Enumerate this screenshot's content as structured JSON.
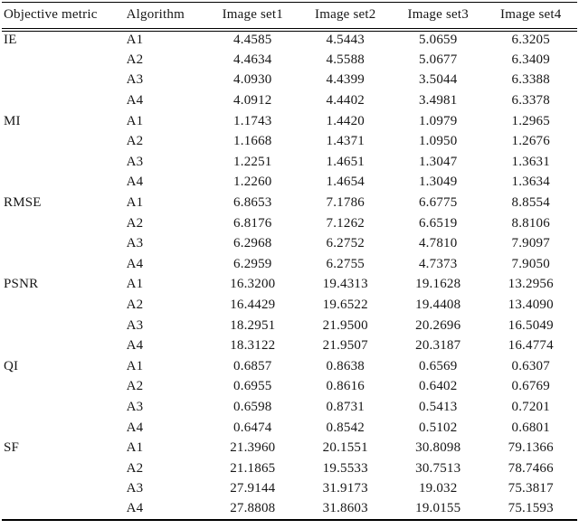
{
  "page": {
    "background_color": "#ffffff",
    "text_color": "#161616",
    "rule_color": "#000000"
  },
  "table": {
    "columns": [
      "Objective metric",
      "Algorithm",
      "Image set1",
      "Image set2",
      "Image set3",
      "Image set4"
    ],
    "groups": [
      {
        "metric": "IE",
        "rows": [
          {
            "algorithm": "A1",
            "values": [
              "4.4585",
              "4.5443",
              "5.0659",
              "6.3205"
            ]
          },
          {
            "algorithm": "A2",
            "values": [
              "4.4634",
              "4.5588",
              "5.0677",
              "6.3409"
            ]
          },
          {
            "algorithm": "A3",
            "values": [
              "4.0930",
              "4.4399",
              "3.5044",
              "6.3388"
            ]
          },
          {
            "algorithm": "A4",
            "values": [
              "4.0912",
              "4.4402",
              "3.4981",
              "6.3378"
            ]
          }
        ]
      },
      {
        "metric": "MI",
        "rows": [
          {
            "algorithm": "A1",
            "values": [
              "1.1743",
              "1.4420",
              "1.0979",
              "1.2965"
            ]
          },
          {
            "algorithm": "A2",
            "values": [
              "1.1668",
              "1.4371",
              "1.0950",
              "1.2676"
            ]
          },
          {
            "algorithm": "A3",
            "values": [
              "1.2251",
              "1.4651",
              "1.3047",
              "1.3631"
            ]
          },
          {
            "algorithm": "A4",
            "values": [
              "1.2260",
              "1.4654",
              "1.3049",
              "1.3634"
            ]
          }
        ]
      },
      {
        "metric": "RMSE",
        "rows": [
          {
            "algorithm": "A1",
            "values": [
              "6.8653",
              "7.1786",
              "6.6775",
              "8.8554"
            ]
          },
          {
            "algorithm": "A2",
            "values": [
              "6.8176",
              "7.1262",
              "6.6519",
              "8.8106"
            ]
          },
          {
            "algorithm": "A3",
            "values": [
              "6.2968",
              "6.2752",
              "4.7810",
              "7.9097"
            ]
          },
          {
            "algorithm": "A4",
            "values": [
              "6.2959",
              "6.2755",
              "4.7373",
              "7.9050"
            ]
          }
        ]
      },
      {
        "metric": "PSNR",
        "rows": [
          {
            "algorithm": "A1",
            "values": [
              "16.3200",
              "19.4313",
              "19.1628",
              "13.2956"
            ]
          },
          {
            "algorithm": "A2",
            "values": [
              "16.4429",
              "19.6522",
              "19.4408",
              "13.4090"
            ]
          },
          {
            "algorithm": "A3",
            "values": [
              "18.2951",
              "21.9500",
              "20.2696",
              "16.5049"
            ]
          },
          {
            "algorithm": "A4",
            "values": [
              "18.3122",
              "21.9507",
              "20.3187",
              "16.4774"
            ]
          }
        ]
      },
      {
        "metric": "QI",
        "rows": [
          {
            "algorithm": "A1",
            "values": [
              "0.6857",
              "0.8638",
              "0.6569",
              "0.6307"
            ]
          },
          {
            "algorithm": "A2",
            "values": [
              "0.6955",
              "0.8616",
              "0.6402",
              "0.6769"
            ]
          },
          {
            "algorithm": "A3",
            "values": [
              "0.6598",
              "0.8731",
              "0.5413",
              "0.7201"
            ]
          },
          {
            "algorithm": "A4",
            "values": [
              "0.6474",
              "0.8542",
              "0.5102",
              "0.6801"
            ]
          }
        ]
      },
      {
        "metric": "SF",
        "rows": [
          {
            "algorithm": "A1",
            "values": [
              "21.3960",
              "20.1551",
              "30.8098",
              "79.1366"
            ]
          },
          {
            "algorithm": "A2",
            "values": [
              "21.1865",
              "19.5533",
              "30.7513",
              "78.7466"
            ]
          },
          {
            "algorithm": "A3",
            "values": [
              "27.9144",
              "31.9173",
              "19.032",
              "75.3817"
            ]
          },
          {
            "algorithm": "A4",
            "values": [
              "27.8808",
              "31.8603",
              "19.0155",
              "75.1593"
            ]
          }
        ]
      }
    ]
  }
}
